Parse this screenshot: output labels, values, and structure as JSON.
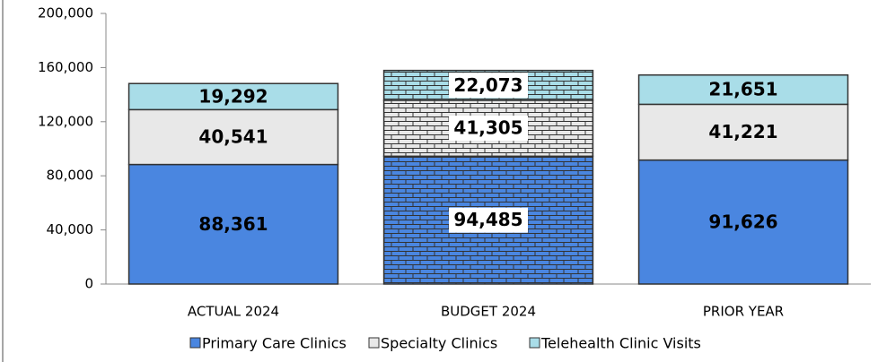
{
  "chart_data": {
    "type": "stacked_bar",
    "categories": [
      "ACTUAL 2024",
      "BUDGET 2024",
      "PRIOR YEAR"
    ],
    "series": [
      {
        "name": "Primary Care Clinics",
        "color": "#4a86e0",
        "values": [
          88361,
          94485,
          91626
        ],
        "value_labels": [
          "88,361",
          "94,485",
          "91,626"
        ]
      },
      {
        "name": "Specialty Clinics",
        "color": "#e8e8e8",
        "values": [
          40541,
          41305,
          41221
        ],
        "value_labels": [
          "40,541",
          "41,305",
          "41,221"
        ]
      },
      {
        "name": "Telehealth Clinic Visits",
        "color": "#a9dde8",
        "values": [
          19292,
          22073,
          21651
        ],
        "value_labels": [
          "19,292",
          "22,073",
          "21,651"
        ]
      }
    ],
    "ylim": [
      0,
      200000
    ],
    "yticks": [
      0,
      {
        "value": 40000,
        "label": "40,000"
      },
      {
        "value": 80000,
        "label": "80,000"
      },
      {
        "value": 120000,
        "label": "120,000"
      },
      {
        "value": 160000,
        "label": "160,000"
      },
      {
        "value": 200000,
        "label": "200,000"
      }
    ],
    "legend": "bottom"
  }
}
